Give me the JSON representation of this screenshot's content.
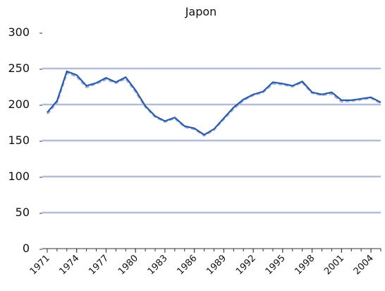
{
  "chart_data": {
    "type": "line",
    "title": "Japon",
    "x": [
      1971,
      1972,
      1973,
      1974,
      1975,
      1976,
      1977,
      1978,
      1979,
      1980,
      1981,
      1982,
      1983,
      1984,
      1985,
      1986,
      1987,
      1988,
      1989,
      1990,
      1991,
      1992,
      1993,
      1994,
      1995,
      1996,
      1997,
      1998,
      1999,
      2000,
      2001,
      2002,
      2003,
      2004,
      2005
    ],
    "series": [
      {
        "color": "#2a5aa8",
        "values": [
          189,
          205,
          246,
          241,
          226,
          230,
          237,
          231,
          238,
          220,
          198,
          184,
          177,
          182,
          170,
          167,
          158,
          166,
          181,
          196,
          207,
          214,
          218,
          231,
          229,
          226,
          232,
          217,
          214,
          217,
          206,
          206,
          208,
          210,
          203
        ]
      },
      {
        "color": "#9fb4e0",
        "values": [
          187,
          203,
          244,
          239,
          224,
          229,
          235,
          230,
          236,
          218,
          197,
          183,
          176,
          181,
          169,
          166,
          157,
          165,
          180,
          194,
          206,
          213,
          217,
          229,
          228,
          225,
          231,
          216,
          213,
          215,
          204,
          205,
          207,
          209,
          202
        ]
      }
    ],
    "xlim": [
      1970.5,
      2005
    ],
    "xticks": [
      1971,
      1974,
      1977,
      1980,
      1983,
      1986,
      1989,
      1992,
      1995,
      1998,
      2001,
      2004
    ],
    "ylim": [
      0,
      300
    ],
    "yticks": [
      0,
      50,
      100,
      150,
      200,
      250,
      300
    ],
    "grid": true
  }
}
